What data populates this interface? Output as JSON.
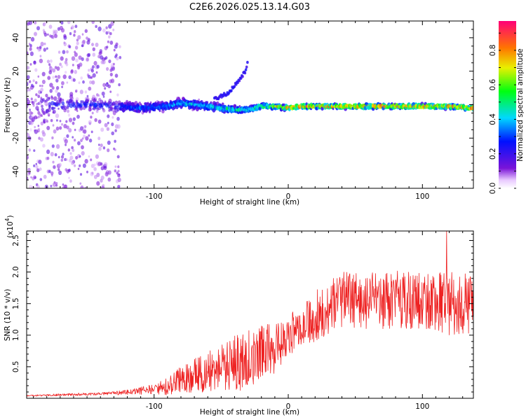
{
  "chart_data": [
    {
      "type": "scatter",
      "title": "C2E6.2026.025.13.14.G03",
      "xlabel": "Height of straight line (km)",
      "ylabel": "Frequency (Hz)",
      "xlim": [
        -195,
        138
      ],
      "ylim": [
        -50,
        50
      ],
      "xticks": [
        -100,
        0,
        100
      ],
      "xtick_labels": [
        "-100",
        "0",
        "100"
      ],
      "yticks": [
        -40,
        -20,
        0,
        20,
        40
      ],
      "ytick_labels": [
        "-40",
        "-20",
        "0",
        "20",
        "40"
      ],
      "colorbar": {
        "label": "Normalized spectral amplitude",
        "range": [
          0,
          0.97
        ],
        "ticks": [
          0.0,
          0.2,
          0.4,
          0.6,
          0.8
        ],
        "tick_labels": [
          "0.0",
          "0.2",
          "0.4",
          "0.6",
          "0.8"
        ]
      },
      "trend": {
        "x": [
          -190,
          -170,
          -150,
          -130,
          -110,
          -90,
          -80,
          -70,
          -60,
          -50,
          -40,
          -30,
          -20,
          -10,
          0,
          10,
          40,
          80,
          100,
          120,
          136
        ],
        "center_hz": [
          0,
          0,
          0,
          -1,
          -2,
          -1,
          1,
          0,
          -1,
          -2,
          -3,
          -3,
          -1,
          -1,
          -2,
          -1,
          -1,
          -1,
          -1,
          -1,
          -2
        ],
        "spread_hz": [
          20,
          6,
          5,
          5,
          4,
          4,
          4,
          4,
          4,
          3.5,
          3,
          2.5,
          2.5,
          2,
          2,
          2,
          2,
          2,
          2,
          2,
          2
        ],
        "peak_amplitude": [
          0.15,
          0.3,
          0.3,
          0.3,
          0.35,
          0.4,
          0.45,
          0.45,
          0.45,
          0.5,
          0.55,
          0.55,
          0.6,
          0.75,
          0.9,
          0.9,
          0.9,
          0.9,
          0.9,
          0.9,
          0.9
        ]
      },
      "branch": {
        "x": [
          -55,
          -45,
          -38,
          -32,
          -30
        ],
        "hz": [
          3,
          7,
          13,
          20,
          26
        ]
      }
    },
    {
      "type": "line",
      "xlabel": "Height of straight line (km)",
      "ylabel": "SNR (10 * v/v)",
      "y_multiplier": "(x10",
      "y_multiplier_exp": "4",
      "y_multiplier_close": ")",
      "xlim": [
        -195,
        138
      ],
      "ylim": [
        0,
        2.65
      ],
      "xticks": [
        -100,
        0,
        100
      ],
      "xtick_labels": [
        "-100",
        "0",
        "100"
      ],
      "yticks": [
        0.5,
        1.0,
        1.5,
        2.0,
        2.5
      ],
      "ytick_labels": [
        "0.5",
        "1.0",
        "1.5",
        "2.0",
        "2.5"
      ],
      "color": "#ee2222",
      "series": [
        {
          "name": "SNR",
          "x": [
            -195,
            -180,
            -160,
            -140,
            -130,
            -120,
            -110,
            -100,
            -90,
            -80,
            -70,
            -60,
            -50,
            -40,
            -30,
            -20,
            -10,
            0,
            10,
            20,
            30,
            40,
            60,
            80,
            100,
            120,
            136
          ],
          "mean": [
            0.04,
            0.05,
            0.06,
            0.07,
            0.08,
            0.1,
            0.12,
            0.15,
            0.2,
            0.3,
            0.35,
            0.42,
            0.5,
            0.55,
            0.62,
            0.7,
            0.8,
            1.0,
            1.15,
            1.3,
            1.45,
            1.55,
            1.55,
            1.55,
            1.55,
            1.5,
            1.5
          ],
          "noise": [
            0.01,
            0.015,
            0.02,
            0.02,
            0.03,
            0.04,
            0.06,
            0.08,
            0.15,
            0.22,
            0.28,
            0.32,
            0.38,
            0.45,
            0.48,
            0.45,
            0.42,
            0.35,
            0.35,
            0.4,
            0.45,
            0.45,
            0.45,
            0.48,
            0.45,
            0.5,
            0.5
          ],
          "samples": 1200,
          "peak": {
            "x": 118,
            "y": 2.65
          }
        }
      ]
    }
  ]
}
